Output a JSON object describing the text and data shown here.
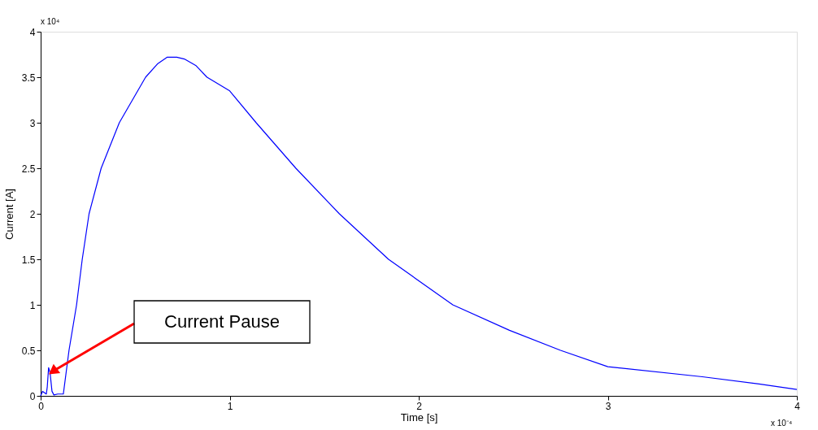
{
  "chart_data": {
    "type": "line",
    "xlabel": "Time [s]",
    "ylabel": "Current [A]",
    "x": [
      0,
      0.01,
      0.03,
      0.035,
      0.042,
      0.05,
      0.06,
      0.07,
      0.09,
      0.12,
      0.15,
      0.19,
      0.22,
      0.256,
      0.32,
      0.416,
      0.555,
      0.62,
      0.67,
      0.72,
      0.76,
      0.82,
      0.88,
      1.0,
      1.14,
      1.35,
      1.58,
      1.84,
      2.18,
      2.48,
      2.75,
      3.0,
      3.5,
      3.8,
      4.0
    ],
    "series": [
      {
        "color": "#0000ff",
        "values": [
          0,
          0.05,
          0.02,
          0.1,
          0.31,
          0.25,
          0.05,
          0.01,
          0.02,
          0.02,
          0.5,
          1.0,
          1.5,
          2.0,
          2.5,
          3.0,
          3.5,
          3.65,
          3.72,
          3.72,
          3.7,
          3.63,
          3.5,
          3.35,
          3.0,
          2.5,
          2.0,
          1.5,
          1.0,
          0.72,
          0.5,
          0.32,
          0.21,
          0.13,
          0.07
        ]
      }
    ],
    "xlim": [
      0,
      4
    ],
    "ylim": [
      0,
      4
    ],
    "xticks": [
      0,
      1,
      2,
      3,
      4
    ],
    "yticks": [
      0,
      0.5,
      1,
      1.5,
      2,
      2.5,
      3,
      3.5,
      4
    ],
    "grid": false,
    "marker": "none",
    "line_style": "solid",
    "annotations": [
      "Current Pause",
      "x 10⁴",
      "x 10⁻⁴"
    ]
  }
}
